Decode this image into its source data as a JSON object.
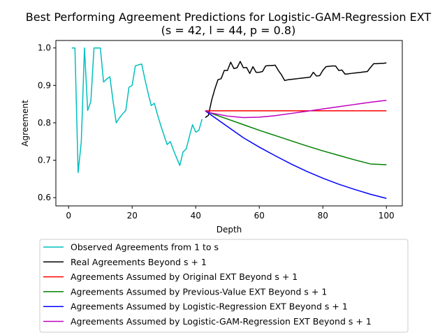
{
  "chart_data": {
    "type": "line",
    "title": "Best Performing Agreement Predictions for Logistic-GAM-Regression EXT",
    "subtitle": "(s = 42, l = 44, p = 0.8)",
    "xlabel": "Depth",
    "ylabel": "Agreement",
    "xlim": [
      -4,
      105
    ],
    "ylim": [
      0.578,
      1.02
    ],
    "xticks": [
      0,
      20,
      40,
      60,
      80,
      100
    ],
    "yticks": [
      0.6,
      0.7,
      0.8,
      0.9,
      1.0
    ],
    "xtick_labels": [
      "0",
      "20",
      "40",
      "60",
      "80",
      "100"
    ],
    "ytick_labels": [
      "0.6",
      "0.7",
      "0.8",
      "0.9",
      "1.0"
    ],
    "grid": false,
    "legend_position": "below",
    "series": [
      {
        "name": "Observed Agreements from 1 to s",
        "color": "#00bfbf",
        "x": [
          1,
          2,
          3,
          4,
          5,
          6,
          7,
          8,
          9,
          10,
          11,
          12,
          13,
          14,
          15,
          16,
          17,
          18,
          19,
          20,
          21,
          22,
          23,
          24,
          25,
          26,
          27,
          28,
          29,
          30,
          31,
          32,
          33,
          34,
          35,
          36,
          37,
          38,
          39,
          40,
          41,
          42
        ],
        "y": [
          1.0,
          1.0,
          0.667,
          0.75,
          1.0,
          0.833,
          0.857,
          1.0,
          1.0,
          1.0,
          0.909,
          0.917,
          0.923,
          0.857,
          0.8,
          0.813,
          0.824,
          0.833,
          0.895,
          0.9,
          0.952,
          0.955,
          0.957,
          0.917,
          0.88,
          0.846,
          0.852,
          0.821,
          0.793,
          0.767,
          0.742,
          0.75,
          0.727,
          0.706,
          0.686,
          0.722,
          0.73,
          0.763,
          0.795,
          0.775,
          0.78,
          0.81
        ]
      },
      {
        "name": "Real Agreements Beyond s + 1",
        "color": "#000000",
        "x": [
          43,
          44,
          45,
          46,
          47,
          48,
          49,
          50,
          51,
          52,
          53,
          54,
          55,
          56,
          57,
          58,
          59,
          60,
          61,
          62,
          63,
          64,
          65,
          66,
          67,
          68,
          69,
          70,
          71,
          72,
          73,
          74,
          75,
          76,
          77,
          78,
          79,
          80,
          81,
          82,
          83,
          84,
          85,
          86,
          87,
          88,
          89,
          90,
          91,
          92,
          93,
          94,
          95,
          96,
          97,
          98,
          99,
          100
        ],
        "y": [
          0.814,
          0.82,
          0.86,
          0.89,
          0.915,
          0.918,
          0.94,
          0.94,
          0.962,
          0.945,
          0.947,
          0.964,
          0.947,
          0.948,
          0.932,
          0.95,
          0.935,
          0.935,
          0.937,
          0.952,
          0.953,
          0.953,
          0.954,
          0.94,
          0.928,
          0.913,
          0.915,
          0.916,
          0.917,
          0.918,
          0.919,
          0.92,
          0.921,
          0.922,
          0.935,
          0.925,
          0.926,
          0.94,
          0.95,
          0.951,
          0.952,
          0.952,
          0.94,
          0.941,
          0.93,
          0.931,
          0.932,
          0.933,
          0.934,
          0.935,
          0.936,
          0.937,
          0.948,
          0.958,
          0.958,
          0.959,
          0.959,
          0.96
        ]
      },
      {
        "name": "Agreements Assumed by Original EXT Beyond s + 1",
        "color": "#ff0000",
        "x": [
          43,
          100
        ],
        "y": [
          0.832,
          0.832
        ]
      },
      {
        "name": "Agreements Assumed by Previous-Value EXT Beyond s + 1",
        "color": "#008000",
        "x": [
          43,
          45,
          50,
          55,
          60,
          65,
          70,
          75,
          80,
          85,
          90,
          95,
          100
        ],
        "y": [
          0.832,
          0.825,
          0.81,
          0.795,
          0.78,
          0.766,
          0.752,
          0.738,
          0.725,
          0.713,
          0.701,
          0.69,
          0.688
        ]
      },
      {
        "name": "Agreements Assumed by Logistic-Regression EXT Beyond s + 1",
        "color": "#0000ff",
        "x": [
          43,
          45,
          50,
          55,
          60,
          65,
          70,
          75,
          80,
          85,
          90,
          95,
          100
        ],
        "y": [
          0.832,
          0.82,
          0.79,
          0.76,
          0.735,
          0.712,
          0.69,
          0.67,
          0.652,
          0.636,
          0.622,
          0.609,
          0.598
        ]
      },
      {
        "name": "Agreements Assumed by Logistic-GAM-Regression EXT Beyond s + 1",
        "color": "#bf00bf",
        "x": [
          43,
          45,
          50,
          55,
          60,
          65,
          70,
          75,
          80,
          85,
          90,
          95,
          100
        ],
        "y": [
          0.832,
          0.826,
          0.818,
          0.814,
          0.815,
          0.819,
          0.825,
          0.831,
          0.837,
          0.843,
          0.849,
          0.855,
          0.86
        ]
      }
    ]
  }
}
